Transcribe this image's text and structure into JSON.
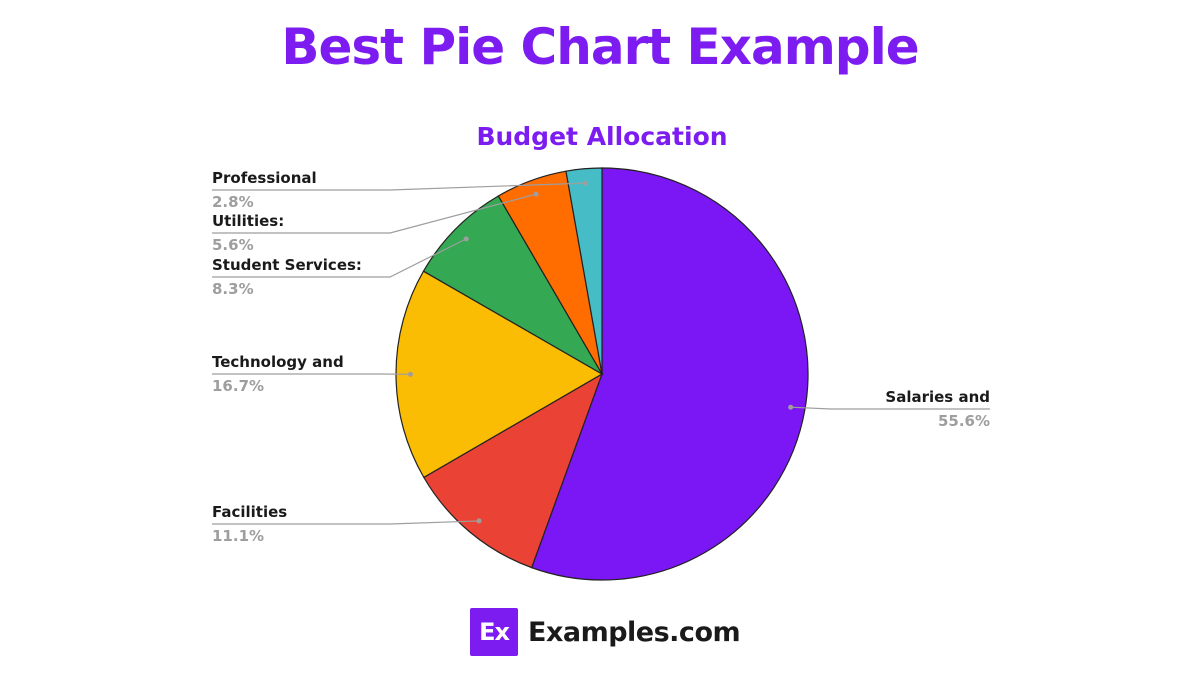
{
  "page": {
    "title": "Best Pie Chart Example"
  },
  "chart_data": {
    "type": "pie",
    "title": "Budget Allocation",
    "slices": [
      {
        "label": "Salaries and",
        "percent_label": "55.6%",
        "value": 55.6,
        "color": "#7b16f5"
      },
      {
        "label": "Facilities",
        "percent_label": "11.1%",
        "value": 11.1,
        "color": "#ea4335"
      },
      {
        "label": "Technology and",
        "percent_label": "16.7%",
        "value": 16.7,
        "color": "#fbbc04"
      },
      {
        "label": "Student Services:",
        "percent_label": "8.3%",
        "value": 8.3,
        "color": "#34a853"
      },
      {
        "label": "Utilities:",
        "percent_label": "5.6%",
        "value": 5.6,
        "color": "#ff6d01"
      },
      {
        "label": "Professional",
        "percent_label": "2.8%",
        "value": 2.8,
        "color": "#46bdc6"
      }
    ]
  },
  "footer": {
    "logo_text": "Ex",
    "brand": "Examples.com"
  }
}
